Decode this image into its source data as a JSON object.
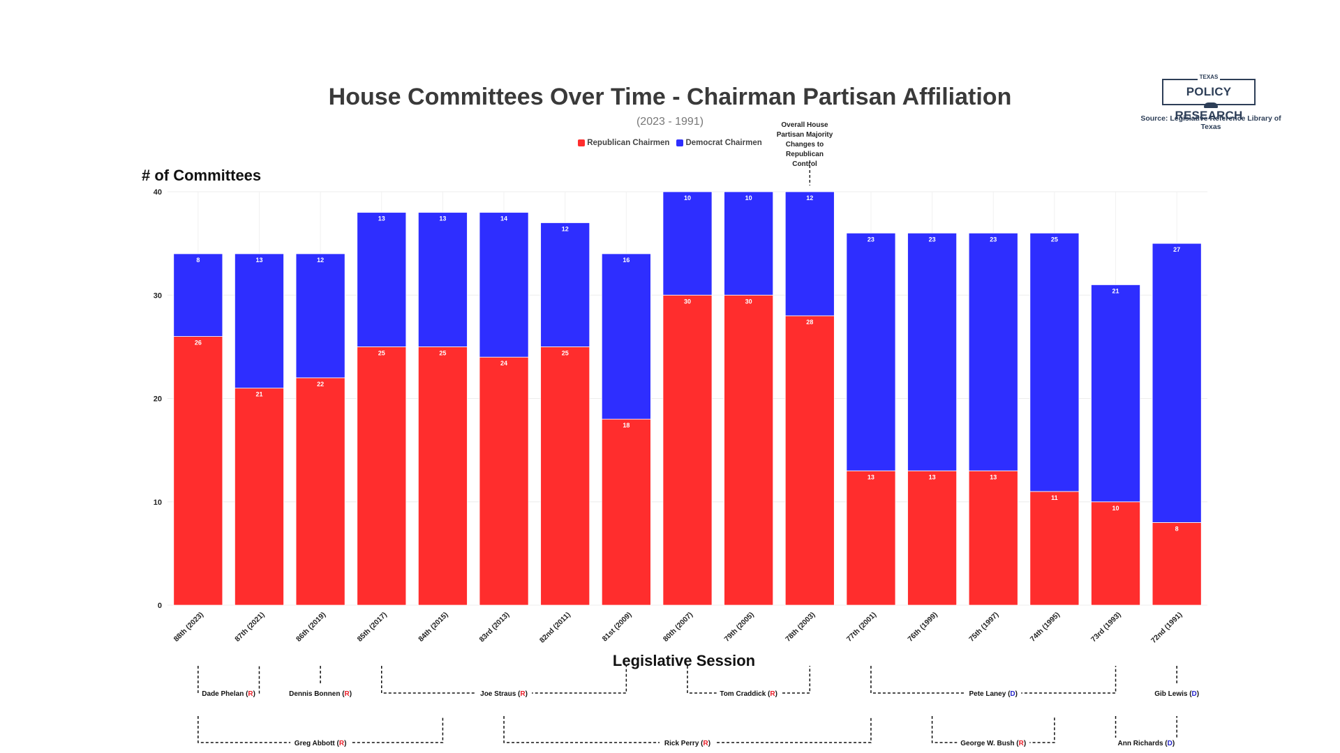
{
  "header": {
    "title": "House Committees Over Time - Chairman Partisan Affiliation",
    "subtitle": "(2023 - 1991)",
    "source": "Source: Legislative Reference Library of Texas"
  },
  "logo": {
    "top_text": "TEXAS",
    "main_text": "POLICY RESEARCH"
  },
  "annotation": {
    "text_lines": [
      "Overall House",
      "Partisan Majority",
      "Changes to",
      "Republican Control"
    ],
    "session": "78th (2003)"
  },
  "colors": {
    "republican": "#ff2d2d",
    "democrat": "#2e2eff",
    "r_tag": "#e8202a",
    "d_tag": "#2525c8"
  },
  "chart_data": {
    "type": "bar",
    "stacked": true,
    "title": "House Committees Over Time - Chairman Partisan Affiliation",
    "subtitle": "(2023 - 1991)",
    "xlabel": "Legislative Session",
    "ylabel": "# of Committees",
    "ylim": [
      0,
      40
    ],
    "yticks": [
      0,
      10,
      20,
      30,
      40
    ],
    "grid": true,
    "legend_position": "top-center",
    "categories": [
      "88th (2023)",
      "87th (2021)",
      "86th (2019)",
      "85th (2017)",
      "84th (2015)",
      "83rd (2013)",
      "82nd (2011)",
      "81st (2009)",
      "80th (2007)",
      "79th (2005)",
      "78th (2003)",
      "77th (2001)",
      "76th (1999)",
      "75th (1997)",
      "74th (1995)",
      "73rd (1993)",
      "72nd (1991)"
    ],
    "series": [
      {
        "name": "Republican Chairmen",
        "color": "#ff2d2d",
        "values": [
          26,
          21,
          22,
          25,
          25,
          24,
          25,
          18,
          30,
          30,
          28,
          13,
          13,
          13,
          11,
          10,
          8
        ]
      },
      {
        "name": "Democrat Chairmen",
        "color": "#2e2eff",
        "values": [
          8,
          13,
          12,
          13,
          13,
          14,
          12,
          16,
          10,
          10,
          12,
          23,
          23,
          23,
          25,
          21,
          27
        ]
      }
    ]
  },
  "officials": {
    "speakers": [
      {
        "name": "Dade Phelan",
        "party": "R",
        "from": "88th (2023)",
        "to": "87th (2021)"
      },
      {
        "name": "Dennis Bonnen",
        "party": "R",
        "from": "86th (2019)",
        "to": "86th (2019)"
      },
      {
        "name": "Joe Straus",
        "party": "R",
        "from": "85th (2017)",
        "to": "81st (2009)"
      },
      {
        "name": "Tom Craddick",
        "party": "R",
        "from": "80th (2007)",
        "to": "78th (2003)"
      },
      {
        "name": "Pete Laney",
        "party": "D",
        "from": "77th (2001)",
        "to": "73rd (1993)"
      },
      {
        "name": "Gib Lewis",
        "party": "D",
        "from": "72nd (1991)",
        "to": "72nd (1991)"
      }
    ],
    "governors": [
      {
        "name": "Greg Abbott",
        "party": "R",
        "from": "88th (2023)",
        "to": "84th (2015)"
      },
      {
        "name": "Rick Perry",
        "party": "R",
        "from": "83rd (2013)",
        "to": "77th (2001)"
      },
      {
        "name": "George W. Bush",
        "party": "R",
        "from": "76th (1999)",
        "to": "74th (1995)"
      },
      {
        "name": "Ann Richards",
        "party": "D",
        "from": "73rd (1993)",
        "to": "72nd (1991)"
      }
    ]
  }
}
